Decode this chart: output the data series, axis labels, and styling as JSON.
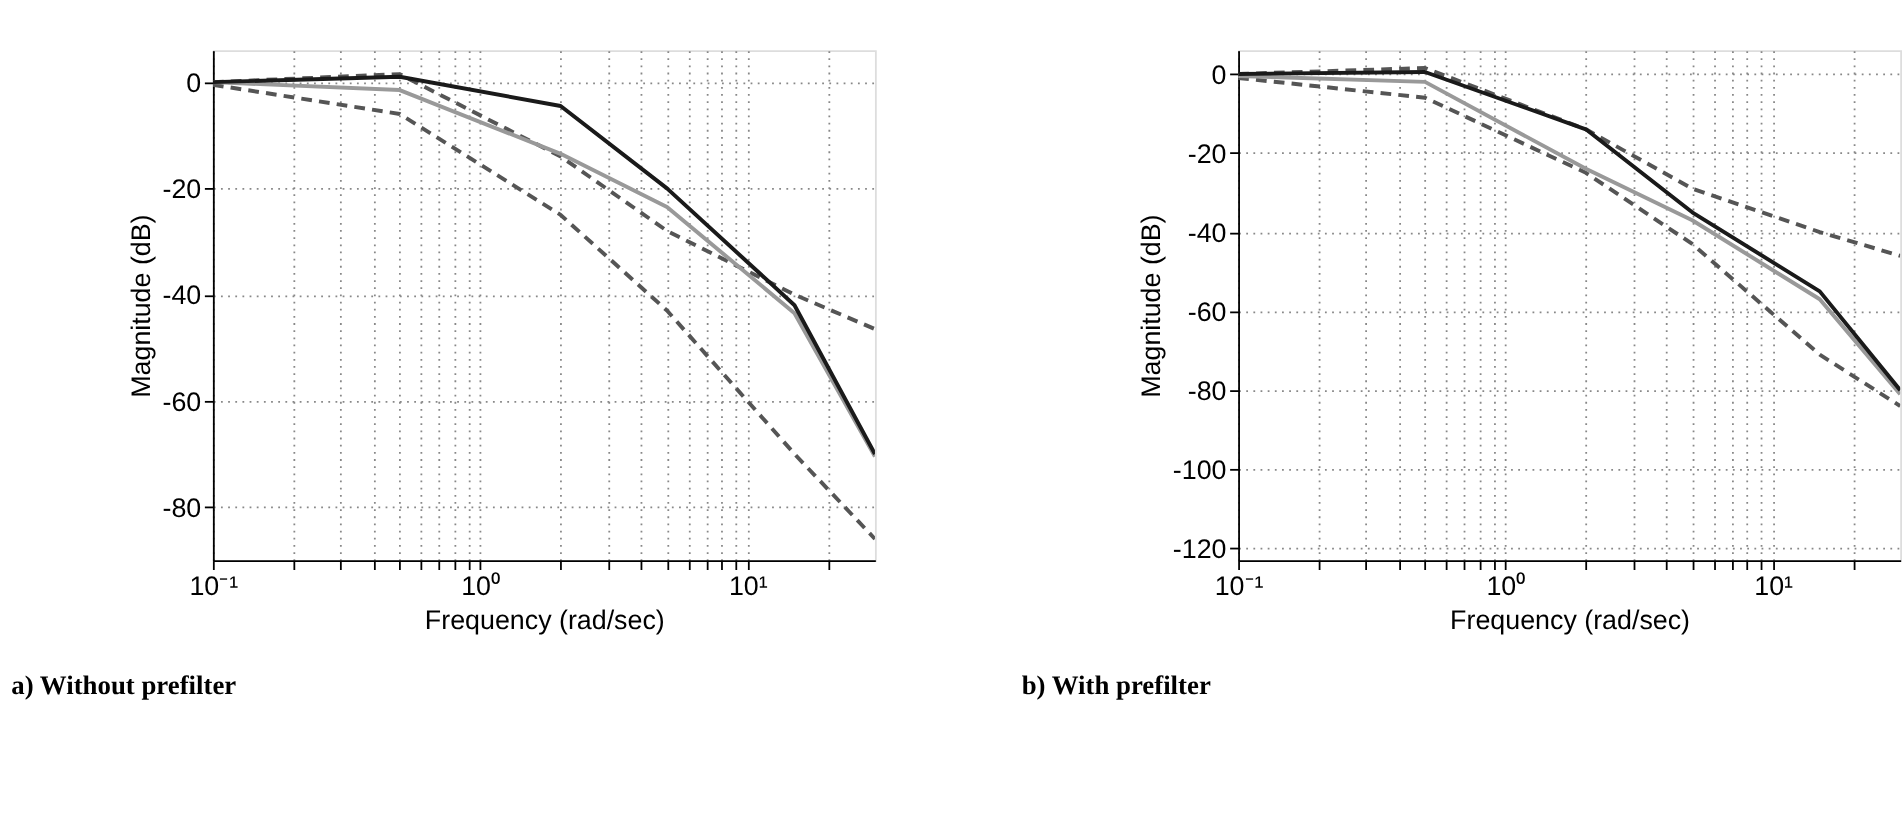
{
  "chart_data": [
    {
      "type": "line",
      "title": "a) Without prefilter",
      "xlabel": "Frequency (rad/sec)",
      "ylabel": "Magnitude (dB)",
      "log": "x",
      "grid": true,
      "xlim": [
        0.1,
        30
      ],
      "ylim": [
        -90,
        6
      ],
      "xticks": [
        {
          "value": 0.1,
          "label": "10⁻¹"
        },
        {
          "value": 0.2,
          "label": null
        },
        {
          "value": 0.3,
          "label": null
        },
        {
          "value": 0.4,
          "label": null
        },
        {
          "value": 0.5,
          "label": null
        },
        {
          "value": 0.6,
          "label": null
        },
        {
          "value": 0.7,
          "label": null
        },
        {
          "value": 0.8,
          "label": null
        },
        {
          "value": 0.9,
          "label": null
        },
        {
          "value": 1,
          "label": "10⁰"
        },
        {
          "value": 2,
          "label": null
        },
        {
          "value": 3,
          "label": null
        },
        {
          "value": 4,
          "label": null
        },
        {
          "value": 5,
          "label": null
        },
        {
          "value": 6,
          "label": null
        },
        {
          "value": 7,
          "label": null
        },
        {
          "value": 8,
          "label": null
        },
        {
          "value": 9,
          "label": null
        },
        {
          "value": 10,
          "label": "10¹"
        },
        {
          "value": 20,
          "label": null
        }
      ],
      "yticks": [
        -80,
        -60,
        -40,
        -20,
        0
      ],
      "series": [
        {
          "color": "#555555",
          "line_style": "dashed",
          "x": [
            0.1,
            0.5,
            2,
            5,
            15,
            30
          ],
          "values": [
            0,
            1.5,
            -14,
            -28,
            -40,
            -46.5
          ]
        },
        {
          "color": "#555555",
          "line_style": "dashed",
          "x": [
            0.1,
            0.5,
            2,
            5,
            15,
            30
          ],
          "values": [
            -0.5,
            -6,
            -25,
            -43,
            -70,
            -86
          ]
        },
        {
          "color": "#999999",
          "line_style": "solid",
          "x": [
            0.1,
            0.5,
            2,
            5,
            15,
            30
          ],
          "values": [
            0,
            -1.5,
            -13.5,
            -23.5,
            -43.5,
            -70.5
          ]
        },
        {
          "color": "#1a1a1a",
          "line_style": "solid",
          "x": [
            0.1,
            0.5,
            2,
            5,
            15,
            30
          ],
          "values": [
            0,
            1,
            -4.5,
            -20,
            -42,
            -70
          ]
        }
      ]
    },
    {
      "type": "line",
      "title": "b) With prefilter",
      "xlabel": "Frequency (rad/sec)",
      "ylabel": "Magnitude (dB)",
      "log": "x",
      "grid": true,
      "xlim": [
        0.1,
        30
      ],
      "ylim": [
        -123,
        6
      ],
      "xticks": [
        {
          "value": 0.1,
          "label": "10⁻¹"
        },
        {
          "value": 0.2,
          "label": null
        },
        {
          "value": 0.3,
          "label": null
        },
        {
          "value": 0.4,
          "label": null
        },
        {
          "value": 0.5,
          "label": null
        },
        {
          "value": 0.6,
          "label": null
        },
        {
          "value": 0.7,
          "label": null
        },
        {
          "value": 0.8,
          "label": null
        },
        {
          "value": 0.9,
          "label": null
        },
        {
          "value": 1,
          "label": "10⁰"
        },
        {
          "value": 2,
          "label": null
        },
        {
          "value": 3,
          "label": null
        },
        {
          "value": 4,
          "label": null
        },
        {
          "value": 5,
          "label": null
        },
        {
          "value": 6,
          "label": null
        },
        {
          "value": 7,
          "label": null
        },
        {
          "value": 8,
          "label": null
        },
        {
          "value": 9,
          "label": null
        },
        {
          "value": 10,
          "label": "10¹"
        },
        {
          "value": 20,
          "label": null
        }
      ],
      "yticks": [
        -120,
        -100,
        -80,
        -60,
        -40,
        -20,
        0
      ],
      "series": [
        {
          "color": "#555555",
          "line_style": "dashed",
          "x": [
            0.1,
            0.5,
            2,
            5,
            15,
            30
          ],
          "values": [
            0,
            1.5,
            -14,
            -29,
            -40,
            -46
          ]
        },
        {
          "color": "#555555",
          "line_style": "dashed",
          "x": [
            0.1,
            0.5,
            2,
            5,
            15,
            30
          ],
          "values": [
            -1,
            -6,
            -25,
            -43,
            -71,
            -84
          ]
        },
        {
          "color": "#999999",
          "line_style": "solid",
          "x": [
            0.1,
            0.5,
            2,
            5,
            15,
            30
          ],
          "values": [
            -0.5,
            -2,
            -24,
            -37,
            -57,
            -81
          ]
        },
        {
          "color": "#1a1a1a",
          "line_style": "solid",
          "x": [
            0.1,
            0.5,
            2,
            5,
            15,
            30
          ],
          "values": [
            0,
            0.5,
            -14,
            -35,
            -55,
            -80
          ]
        }
      ]
    }
  ]
}
